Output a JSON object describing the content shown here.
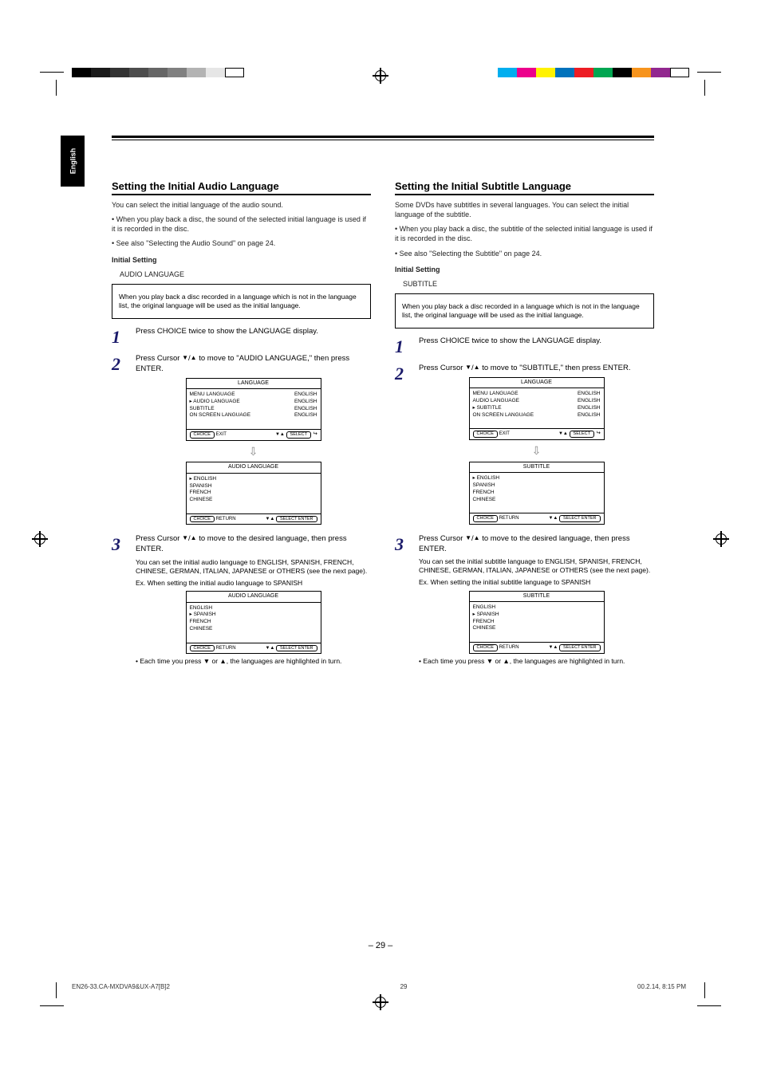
{
  "page": {
    "lang_tab": "English",
    "page_number": "– 29 –",
    "file_left": "EN26-33.CA-MXDVA9&UX-A7[B]2",
    "file_center": "29",
    "file_right": "00.2.14, 8:15 PM"
  },
  "gray_swatches": [
    "#000000",
    "#1a1a1a",
    "#333333",
    "#4d4d4d",
    "#666666",
    "#808080",
    "#b3b3b3",
    "#e6e6e6",
    "#ffffff"
  ],
  "color_swatches": [
    "#00aeef",
    "#ec008c",
    "#fff200",
    "#0072bc",
    "#ed1c24",
    "#00a651",
    "#000000",
    "#f7941d",
    "#92278f",
    "#ffffff"
  ],
  "left": {
    "title": "Setting the Initial Audio Language",
    "intro": "You can select the initial language of the audio sound.",
    "bullet1": "When you play back a disc, the sound of the selected initial language is used if it is recorded in the disc.",
    "bullet2": "See also \"Selecting the Audio Sound\" on page 24.",
    "setting_title": "Initial Setting",
    "setting_sub": "AUDIO LANGUAGE",
    "note": "When you play back a disc recorded in a language which is not in the language list, the original language will be used as the initial language.",
    "step1": "Press CHOICE twice to show the LANGUAGE display.",
    "step2_a": "Press Cursor ",
    "step2_b": " to move        to \"AUDIO LANGUAGE,\" then press ENTER.",
    "step3_a": "Press Cursor ",
    "step3_b": " to move        to the desired language, then press ENTER.",
    "step3_note": "You can set the initial audio language to ENGLISH, SPANISH, FRENCH, CHINESE, GERMAN, ITALIAN, JAPANESE or OTHERS (see the next page).",
    "ex": "Ex. When setting the initial audio language to SPANISH",
    "after_press": "• Each time you press ▼ or ▲, the languages are highlighted in turn.",
    "menu1_title": "LANGUAGE",
    "menu1_rows": [
      [
        "MENU LANGUAGE",
        "ENGLISH"
      ],
      [
        "AUDIO LANGUAGE",
        "ENGLISH"
      ],
      [
        "SUBTITLE",
        "ENGLISH"
      ],
      [
        "ON SCREEN LANGUAGE",
        "ENGLISH"
      ]
    ],
    "menu2_title": "AUDIO LANGUAGE",
    "menu2_rows": [
      [
        "ENGLISH",
        ""
      ],
      [
        "SPANISH",
        ""
      ],
      [
        "FRENCH",
        ""
      ],
      [
        "CHINESE",
        ""
      ]
    ],
    "menu3_title": "AUDIO LANGUAGE",
    "menu3_rows": [
      [
        "ENGLISH",
        ""
      ],
      [
        "SPANISH",
        ""
      ],
      [
        "FRENCH",
        ""
      ],
      [
        "CHINESE",
        ""
      ]
    ],
    "footer_choice": "CHOICE",
    "footer_select": "SELECT",
    "footer_select_enter": "SELECT  ENTER",
    "footer_exit": "EXIT",
    "footer_return": "RETURN"
  },
  "right": {
    "title": "Setting the Initial Subtitle Language",
    "intro": "Some DVDs have subtitles in several languages. You can select the initial language of the subtitle.",
    "bullet1": "When you play back a disc, the subtitle of the selected initial language is used if it is recorded in the disc.",
    "bullet2": "See also \"Selecting the Subtitle\" on page 24.",
    "setting_title": "Initial Setting",
    "setting_sub": "SUBTITLE",
    "note": "When you play back a disc recorded in a language which is not in the language list, the original language will be used as the initial language.",
    "step1": "Press CHOICE twice to show the LANGUAGE display.",
    "step2_a": "Press Cursor ",
    "step2_b": " to move        to \"SUBTITLE,\" then press ENTER.",
    "step3_a": "Press Cursor ",
    "step3_b": " to move        to the desired language, then press ENTER.",
    "step3_note": "You can set the initial subtitle language to ENGLISH, SPANISH, FRENCH, CHINESE, GERMAN, ITALIAN, JAPANESE or OTHERS (see the next page).",
    "ex": "Ex. When setting the initial subtitle language to SPANISH",
    "after_press": "• Each time you press ▼ or ▲, the languages are highlighted in turn.",
    "menu1_title": "LANGUAGE",
    "menu1_rows": [
      [
        "MENU LANGUAGE",
        "ENGLISH"
      ],
      [
        "AUDIO LANGUAGE",
        "ENGLISH"
      ],
      [
        "SUBTITLE",
        "ENGLISH"
      ],
      [
        "ON SCREEN LANGUAGE",
        "ENGLISH"
      ]
    ],
    "menu2_title": "SUBTITLE",
    "menu2_rows": [
      [
        "ENGLISH",
        ""
      ],
      [
        "SPANISH",
        ""
      ],
      [
        "FRENCH",
        ""
      ],
      [
        "CHINESE",
        ""
      ]
    ],
    "menu3_title": "SUBTITLE",
    "menu3_rows": [
      [
        "ENGLISH",
        ""
      ],
      [
        "SPANISH",
        ""
      ],
      [
        "FRENCH",
        ""
      ],
      [
        "CHINESE",
        ""
      ]
    ]
  }
}
